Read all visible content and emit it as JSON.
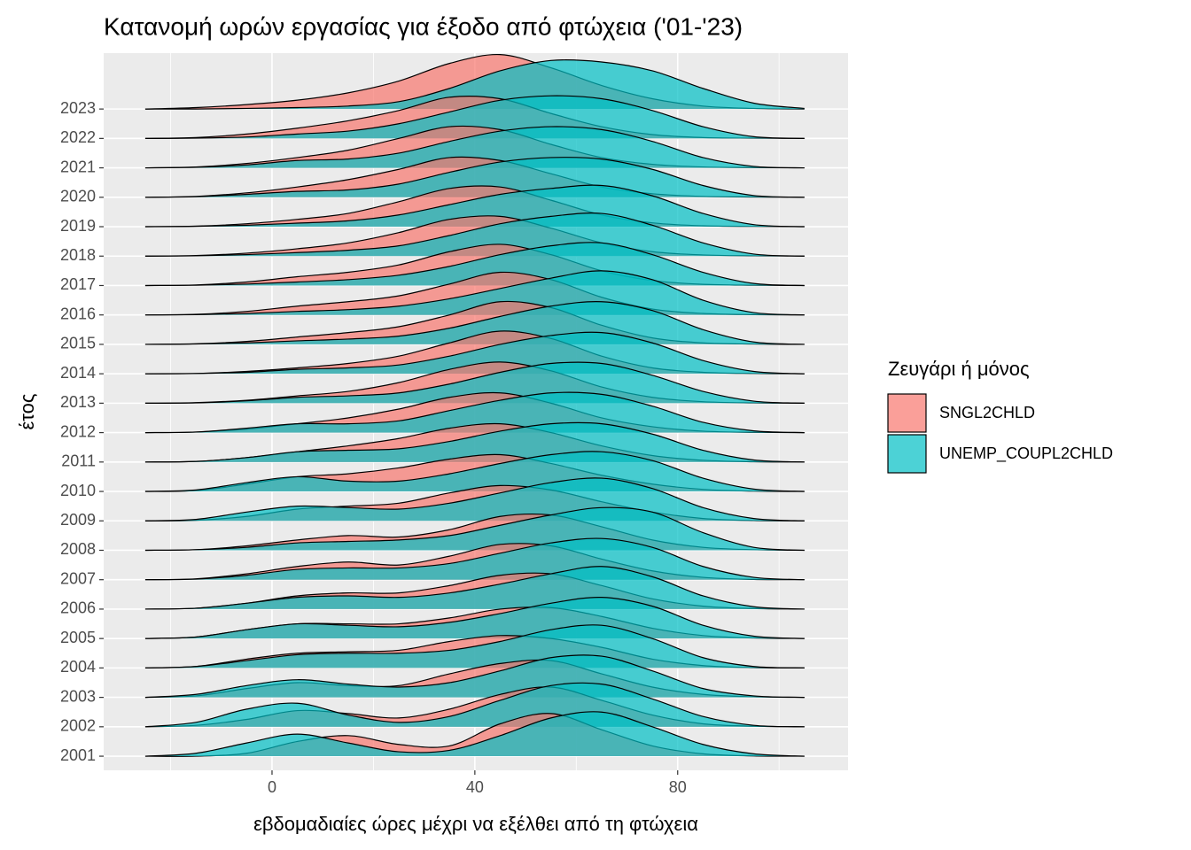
{
  "chart_data": {
    "type": "ridgeline",
    "title": "Κατανομή ωρών εργασίας για έξοδο από φτώχεια ('01-'23)",
    "x_label": "εβδομαδιαίες ώρες μέχρι να εξέλθει από τη φτώχεια",
    "y_label": "έτος",
    "legend_title": "Ζευγάρι ή μόνος",
    "legend_position": "right",
    "categories": [
      "2001",
      "2002",
      "2003",
      "2004",
      "2005",
      "2006",
      "2007",
      "2008",
      "2009",
      "2010",
      "2011",
      "2012",
      "2013",
      "2014",
      "2015",
      "2016",
      "2017",
      "2018",
      "2019",
      "2020",
      "2021",
      "2022",
      "2023"
    ],
    "x": [
      -25,
      -15,
      -5,
      5,
      15,
      25,
      35,
      45,
      55,
      65,
      75,
      85,
      95,
      105
    ],
    "xlim": [
      -33.2,
      113.6
    ],
    "xticks": [
      0,
      40,
      80
    ],
    "xminor_ticks": [
      -20,
      20,
      60,
      100
    ],
    "ylim": [
      -0.48,
      23.9
    ],
    "grid": true,
    "series": [
      {
        "name": "SNGL2CHLD",
        "color": "#F8766D",
        "values": [
          [
            0,
            0,
            0.1,
            0.5,
            0.7,
            0.4,
            0.35,
            1.1,
            1.45,
            0.9,
            0.35,
            0.08,
            0.01,
            0
          ],
          [
            0,
            0.05,
            0.25,
            0.55,
            0.45,
            0.3,
            0.6,
            1.1,
            1.35,
            0.9,
            0.4,
            0.1,
            0.02,
            0
          ],
          [
            0,
            0.05,
            0.3,
            0.5,
            0.4,
            0.4,
            0.8,
            1.15,
            1.25,
            0.8,
            0.35,
            0.1,
            0.02,
            0
          ],
          [
            0,
            0.05,
            0.3,
            0.5,
            0.55,
            0.6,
            0.9,
            1.1,
            1.0,
            0.7,
            0.3,
            0.08,
            0.01,
            0
          ],
          [
            0,
            0.05,
            0.3,
            0.5,
            0.5,
            0.5,
            0.7,
            1.0,
            1.05,
            0.75,
            0.35,
            0.1,
            0.02,
            0
          ],
          [
            0,
            0.03,
            0.2,
            0.45,
            0.55,
            0.55,
            0.8,
            1.15,
            1.2,
            0.8,
            0.35,
            0.1,
            0.02,
            0
          ],
          [
            0,
            0.03,
            0.2,
            0.45,
            0.6,
            0.5,
            0.8,
            1.2,
            1.15,
            0.7,
            0.3,
            0.08,
            0.01,
            0
          ],
          [
            0,
            0.02,
            0.15,
            0.35,
            0.5,
            0.45,
            0.7,
            1.15,
            1.2,
            0.8,
            0.35,
            0.1,
            0.02,
            0
          ],
          [
            0,
            0.02,
            0.15,
            0.4,
            0.5,
            0.6,
            0.95,
            1.2,
            1.05,
            0.65,
            0.3,
            0.08,
            0.01,
            0
          ],
          [
            0,
            0.03,
            0.25,
            0.5,
            0.6,
            0.8,
            1.1,
            1.25,
            0.95,
            0.55,
            0.25,
            0.07,
            0.01,
            0
          ],
          [
            0,
            0.02,
            0.15,
            0.35,
            0.55,
            0.8,
            1.15,
            1.3,
            1.0,
            0.55,
            0.22,
            0.06,
            0.01,
            0
          ],
          [
            0,
            0.02,
            0.12,
            0.3,
            0.5,
            0.8,
            1.2,
            1.35,
            1.0,
            0.5,
            0.2,
            0.05,
            0.01,
            0
          ],
          [
            0,
            0.02,
            0.1,
            0.25,
            0.4,
            0.7,
            1.15,
            1.4,
            1.1,
            0.55,
            0.2,
            0.05,
            0.01,
            0
          ],
          [
            0,
            0.01,
            0.08,
            0.2,
            0.35,
            0.6,
            1.05,
            1.45,
            1.2,
            0.6,
            0.2,
            0.05,
            0.01,
            0
          ],
          [
            0,
            0.02,
            0.1,
            0.25,
            0.4,
            0.6,
            1.0,
            1.45,
            1.25,
            0.65,
            0.22,
            0.05,
            0.01,
            0
          ],
          [
            0,
            0.02,
            0.12,
            0.3,
            0.45,
            0.65,
            1.05,
            1.45,
            1.2,
            0.6,
            0.2,
            0.05,
            0.01,
            0
          ],
          [
            0,
            0.02,
            0.12,
            0.3,
            0.45,
            0.7,
            1.15,
            1.4,
            1.05,
            0.5,
            0.17,
            0.04,
            0.01,
            0
          ],
          [
            0,
            0.02,
            0.1,
            0.25,
            0.45,
            0.8,
            1.25,
            1.35,
            0.95,
            0.45,
            0.15,
            0.04,
            0.01,
            0
          ],
          [
            0,
            0.02,
            0.1,
            0.25,
            0.45,
            0.85,
            1.3,
            1.35,
            0.9,
            0.4,
            0.13,
            0.03,
            0.01,
            0
          ],
          [
            0,
            0.03,
            0.15,
            0.35,
            0.6,
            0.95,
            1.35,
            1.25,
            0.8,
            0.35,
            0.12,
            0.03,
            0.01,
            0
          ],
          [
            0,
            0.03,
            0.15,
            0.35,
            0.6,
            1.0,
            1.4,
            1.3,
            0.8,
            0.35,
            0.12,
            0.03,
            0.01,
            0
          ],
          [
            0,
            0.03,
            0.15,
            0.35,
            0.6,
            0.95,
            1.4,
            1.35,
            0.85,
            0.4,
            0.13,
            0.03,
            0.01,
            0
          ],
          [
            0,
            0.05,
            0.15,
            0.3,
            0.55,
            0.95,
            1.55,
            1.85,
            1.4,
            0.8,
            0.35,
            0.1,
            0.02,
            0
          ]
        ]
      },
      {
        "name": "UNEMP_COUPL2CHLD",
        "color": "#00BFC4",
        "values": [
          [
            0,
            0.1,
            0.45,
            0.75,
            0.45,
            0.15,
            0.2,
            0.7,
            1.3,
            1.5,
            1.0,
            0.4,
            0.08,
            0
          ],
          [
            0,
            0.15,
            0.6,
            0.8,
            0.4,
            0.15,
            0.35,
            0.9,
            1.4,
            1.45,
            0.95,
            0.35,
            0.05,
            0
          ],
          [
            0,
            0.1,
            0.4,
            0.6,
            0.45,
            0.35,
            0.5,
            0.9,
            1.35,
            1.4,
            0.9,
            0.3,
            0.05,
            0
          ],
          [
            0,
            0.05,
            0.25,
            0.45,
            0.5,
            0.5,
            0.6,
            0.9,
            1.3,
            1.45,
            1.0,
            0.35,
            0.05,
            0
          ],
          [
            0,
            0.05,
            0.3,
            0.5,
            0.45,
            0.4,
            0.55,
            0.85,
            1.2,
            1.4,
            1.1,
            0.45,
            0.08,
            0
          ],
          [
            0,
            0.03,
            0.2,
            0.4,
            0.45,
            0.4,
            0.55,
            0.85,
            1.2,
            1.45,
            1.1,
            0.45,
            0.08,
            0
          ],
          [
            0,
            0.02,
            0.15,
            0.35,
            0.4,
            0.4,
            0.55,
            0.9,
            1.25,
            1.4,
            1.1,
            0.45,
            0.08,
            0
          ],
          [
            0,
            0.02,
            0.1,
            0.25,
            0.3,
            0.35,
            0.5,
            0.85,
            1.2,
            1.45,
            1.3,
            0.6,
            0.1,
            0
          ],
          [
            0,
            0.05,
            0.3,
            0.5,
            0.45,
            0.4,
            0.6,
            0.95,
            1.3,
            1.45,
            1.1,
            0.45,
            0.08,
            0
          ],
          [
            0,
            0.05,
            0.3,
            0.5,
            0.35,
            0.35,
            0.6,
            0.95,
            1.25,
            1.35,
            1.05,
            0.45,
            0.08,
            0
          ],
          [
            0,
            0.02,
            0.15,
            0.35,
            0.4,
            0.45,
            0.7,
            1.05,
            1.3,
            1.3,
            0.95,
            0.4,
            0.07,
            0
          ],
          [
            0,
            0.02,
            0.15,
            0.3,
            0.3,
            0.4,
            0.75,
            1.1,
            1.35,
            1.3,
            0.9,
            0.35,
            0.06,
            0
          ],
          [
            0,
            0.01,
            0.08,
            0.2,
            0.25,
            0.35,
            0.65,
            1.05,
            1.35,
            1.35,
            0.95,
            0.4,
            0.07,
            0
          ],
          [
            0,
            0.01,
            0.05,
            0.15,
            0.2,
            0.3,
            0.6,
            1.0,
            1.3,
            1.4,
            1.05,
            0.45,
            0.08,
            0
          ],
          [
            0,
            0.01,
            0.05,
            0.12,
            0.18,
            0.28,
            0.55,
            0.95,
            1.3,
            1.45,
            1.15,
            0.5,
            0.08,
            0
          ],
          [
            0,
            0.01,
            0.05,
            0.12,
            0.18,
            0.3,
            0.55,
            0.9,
            1.25,
            1.5,
            1.2,
            0.5,
            0.08,
            0
          ],
          [
            0,
            0.01,
            0.05,
            0.12,
            0.2,
            0.35,
            0.65,
            1.05,
            1.35,
            1.45,
            1.05,
            0.45,
            0.07,
            0
          ],
          [
            0,
            0.01,
            0.05,
            0.12,
            0.2,
            0.35,
            0.7,
            1.1,
            1.35,
            1.45,
            1.05,
            0.45,
            0.07,
            0
          ],
          [
            0,
            0.01,
            0.05,
            0.12,
            0.2,
            0.4,
            0.75,
            1.1,
            1.3,
            1.4,
            1.05,
            0.45,
            0.07,
            0
          ],
          [
            0,
            0.02,
            0.1,
            0.2,
            0.25,
            0.45,
            0.85,
            1.2,
            1.35,
            1.3,
            0.95,
            0.4,
            0.06,
            0
          ],
          [
            0,
            0.02,
            0.1,
            0.25,
            0.3,
            0.5,
            0.9,
            1.25,
            1.4,
            1.3,
            0.9,
            0.35,
            0.05,
            0
          ],
          [
            0,
            0.01,
            0.05,
            0.15,
            0.25,
            0.5,
            0.9,
            1.3,
            1.45,
            1.35,
            0.95,
            0.4,
            0.06,
            0
          ],
          [
            0,
            0,
            0.02,
            0.05,
            0.1,
            0.25,
            0.7,
            1.3,
            1.65,
            1.6,
            1.3,
            0.7,
            0.2,
            0.02
          ]
        ]
      }
    ]
  }
}
